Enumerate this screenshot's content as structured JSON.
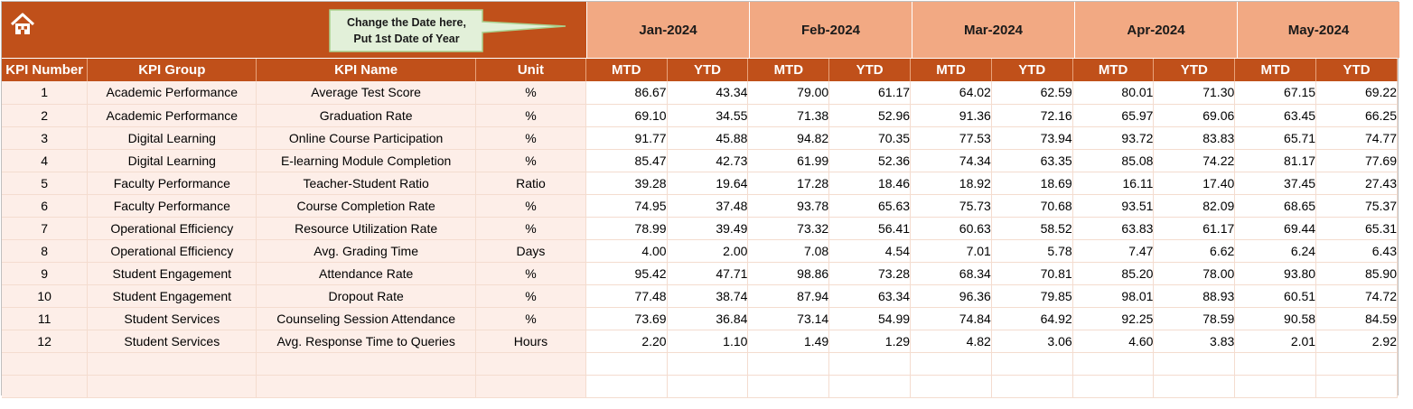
{
  "callout": {
    "line1": "Change the Date here,",
    "line2": "Put 1st Date of Year"
  },
  "months": [
    "Jan-2024",
    "Feb-2024",
    "Mar-2024",
    "Apr-2024",
    "May-2024"
  ],
  "columns": {
    "kpi_number": "KPI Number",
    "kpi_group": "KPI Group",
    "kpi_name": "KPI Name",
    "unit": "Unit",
    "mtd": "MTD",
    "ytd": "YTD"
  },
  "rows": [
    {
      "num": "1",
      "group": "Academic Performance",
      "name": "Average Test Score",
      "unit": "%",
      "values": [
        "86.67",
        "43.34",
        "79.00",
        "61.17",
        "64.02",
        "62.59",
        "80.01",
        "71.30",
        "67.15",
        "69.22"
      ]
    },
    {
      "num": "2",
      "group": "Academic Performance",
      "name": "Graduation Rate",
      "unit": "%",
      "values": [
        "69.10",
        "34.55",
        "71.38",
        "52.96",
        "91.36",
        "72.16",
        "65.97",
        "69.06",
        "63.45",
        "66.25"
      ]
    },
    {
      "num": "3",
      "group": "Digital Learning",
      "name": "Online Course Participation",
      "unit": "%",
      "values": [
        "91.77",
        "45.88",
        "94.82",
        "70.35",
        "77.53",
        "73.94",
        "93.72",
        "83.83",
        "65.71",
        "74.77"
      ]
    },
    {
      "num": "4",
      "group": "Digital Learning",
      "name": "E-learning Module Completion",
      "unit": "%",
      "values": [
        "85.47",
        "42.73",
        "61.99",
        "52.36",
        "74.34",
        "63.35",
        "85.08",
        "74.22",
        "81.17",
        "77.69"
      ]
    },
    {
      "num": "5",
      "group": "Faculty Performance",
      "name": "Teacher-Student Ratio",
      "unit": "Ratio",
      "values": [
        "39.28",
        "19.64",
        "17.28",
        "18.46",
        "18.92",
        "18.69",
        "16.11",
        "17.40",
        "37.45",
        "27.43"
      ]
    },
    {
      "num": "6",
      "group": "Faculty Performance",
      "name": "Course Completion Rate",
      "unit": "%",
      "values": [
        "74.95",
        "37.48",
        "93.78",
        "65.63",
        "75.73",
        "70.68",
        "93.51",
        "82.09",
        "68.65",
        "75.37"
      ]
    },
    {
      "num": "7",
      "group": "Operational Efficiency",
      "name": "Resource Utilization Rate",
      "unit": "%",
      "values": [
        "78.99",
        "39.49",
        "73.32",
        "56.41",
        "60.63",
        "58.52",
        "63.83",
        "61.17",
        "69.44",
        "65.31"
      ]
    },
    {
      "num": "8",
      "group": "Operational Efficiency",
      "name": "Avg. Grading Time",
      "unit": "Days",
      "values": [
        "4.00",
        "2.00",
        "7.08",
        "4.54",
        "7.01",
        "5.78",
        "7.47",
        "6.62",
        "6.24",
        "6.43"
      ]
    },
    {
      "num": "9",
      "group": "Student Engagement",
      "name": "Attendance Rate",
      "unit": "%",
      "values": [
        "95.42",
        "47.71",
        "98.86",
        "73.28",
        "68.34",
        "70.81",
        "85.20",
        "78.00",
        "93.80",
        "85.90"
      ]
    },
    {
      "num": "10",
      "group": "Student Engagement",
      "name": "Dropout Rate",
      "unit": "%",
      "values": [
        "77.48",
        "38.74",
        "87.94",
        "63.34",
        "96.36",
        "79.85",
        "98.01",
        "88.93",
        "60.51",
        "74.72"
      ]
    },
    {
      "num": "11",
      "group": "Student Services",
      "name": "Counseling Session Attendance",
      "unit": "%",
      "values": [
        "73.69",
        "36.84",
        "73.14",
        "54.99",
        "74.84",
        "64.92",
        "92.25",
        "78.59",
        "90.58",
        "84.59"
      ]
    },
    {
      "num": "12",
      "group": "Student Services",
      "name": "Avg. Response Time to Queries",
      "unit": "Hours",
      "values": [
        "2.20",
        "1.10",
        "1.49",
        "1.29",
        "4.82",
        "3.06",
        "4.60",
        "3.83",
        "2.01",
        "2.92"
      ]
    }
  ],
  "empty_rows": 2,
  "colors": {
    "header_dark": "#c0501a",
    "header_light": "#f2a983",
    "info_bg": "#fdeee8",
    "callout_bg": "#e2f0d9"
  }
}
